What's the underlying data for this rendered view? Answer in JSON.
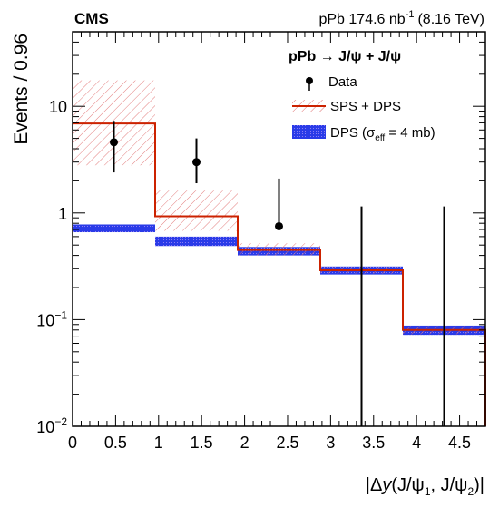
{
  "header": {
    "experiment": "CMS",
    "lumi_prefix": "pPb 174.6 nb",
    "lumi_exp": "-1",
    "lumi_suffix": "(8.16 TeV)"
  },
  "chart_data": {
    "type": "histogram",
    "title": "",
    "xlabel": "|Δy(J/ψ1, J/ψ2)|",
    "ylabel": "Events / 0.96",
    "xlim": [
      0,
      4.8
    ],
    "ylim": [
      0.01,
      50
    ],
    "y_scale": "log",
    "grid": false,
    "legend_position": "top-right",
    "x_ticks": [
      "0",
      "0.5",
      "1",
      "1.5",
      "2",
      "2.5",
      "3",
      "3.5",
      "4",
      "4.5"
    ],
    "y_ticks": [
      "10",
      "1",
      "10−1",
      "10−2"
    ],
    "process_label": "pPb → J/ψ + J/ψ",
    "bin_edges": [
      0,
      0.96,
      1.92,
      2.88,
      3.84,
      4.8
    ],
    "series": [
      {
        "name": "Data",
        "style": "points",
        "color": "#000000",
        "x": [
          0.48,
          1.44,
          2.4,
          3.36,
          4.32
        ],
        "y": [
          4.6,
          3.0,
          0.75,
          null,
          null
        ],
        "err_low": [
          2.4,
          1.9,
          0.74,
          null,
          null
        ],
        "err_high": [
          7.3,
          5.0,
          2.1,
          1.15,
          1.15
        ]
      },
      {
        "name": "SPS + DPS",
        "style": "step_with_band",
        "color": "#cc2200",
        "band_color": "#e88888",
        "y": [
          6.9,
          0.93,
          0.45,
          0.29,
          0.08
        ],
        "band_low": [
          2.8,
          0.68,
          0.4,
          0.27,
          0.073
        ],
        "band_high": [
          17.5,
          1.62,
          0.52,
          0.31,
          0.087
        ]
      },
      {
        "name": "DPS (σeff = 4 mb)",
        "style": "band",
        "color": "#2233dd",
        "band_low": [
          0.66,
          0.49,
          0.4,
          0.265,
          0.072
        ],
        "band_high": [
          0.78,
          0.6,
          0.48,
          0.315,
          0.088
        ]
      }
    ]
  }
}
